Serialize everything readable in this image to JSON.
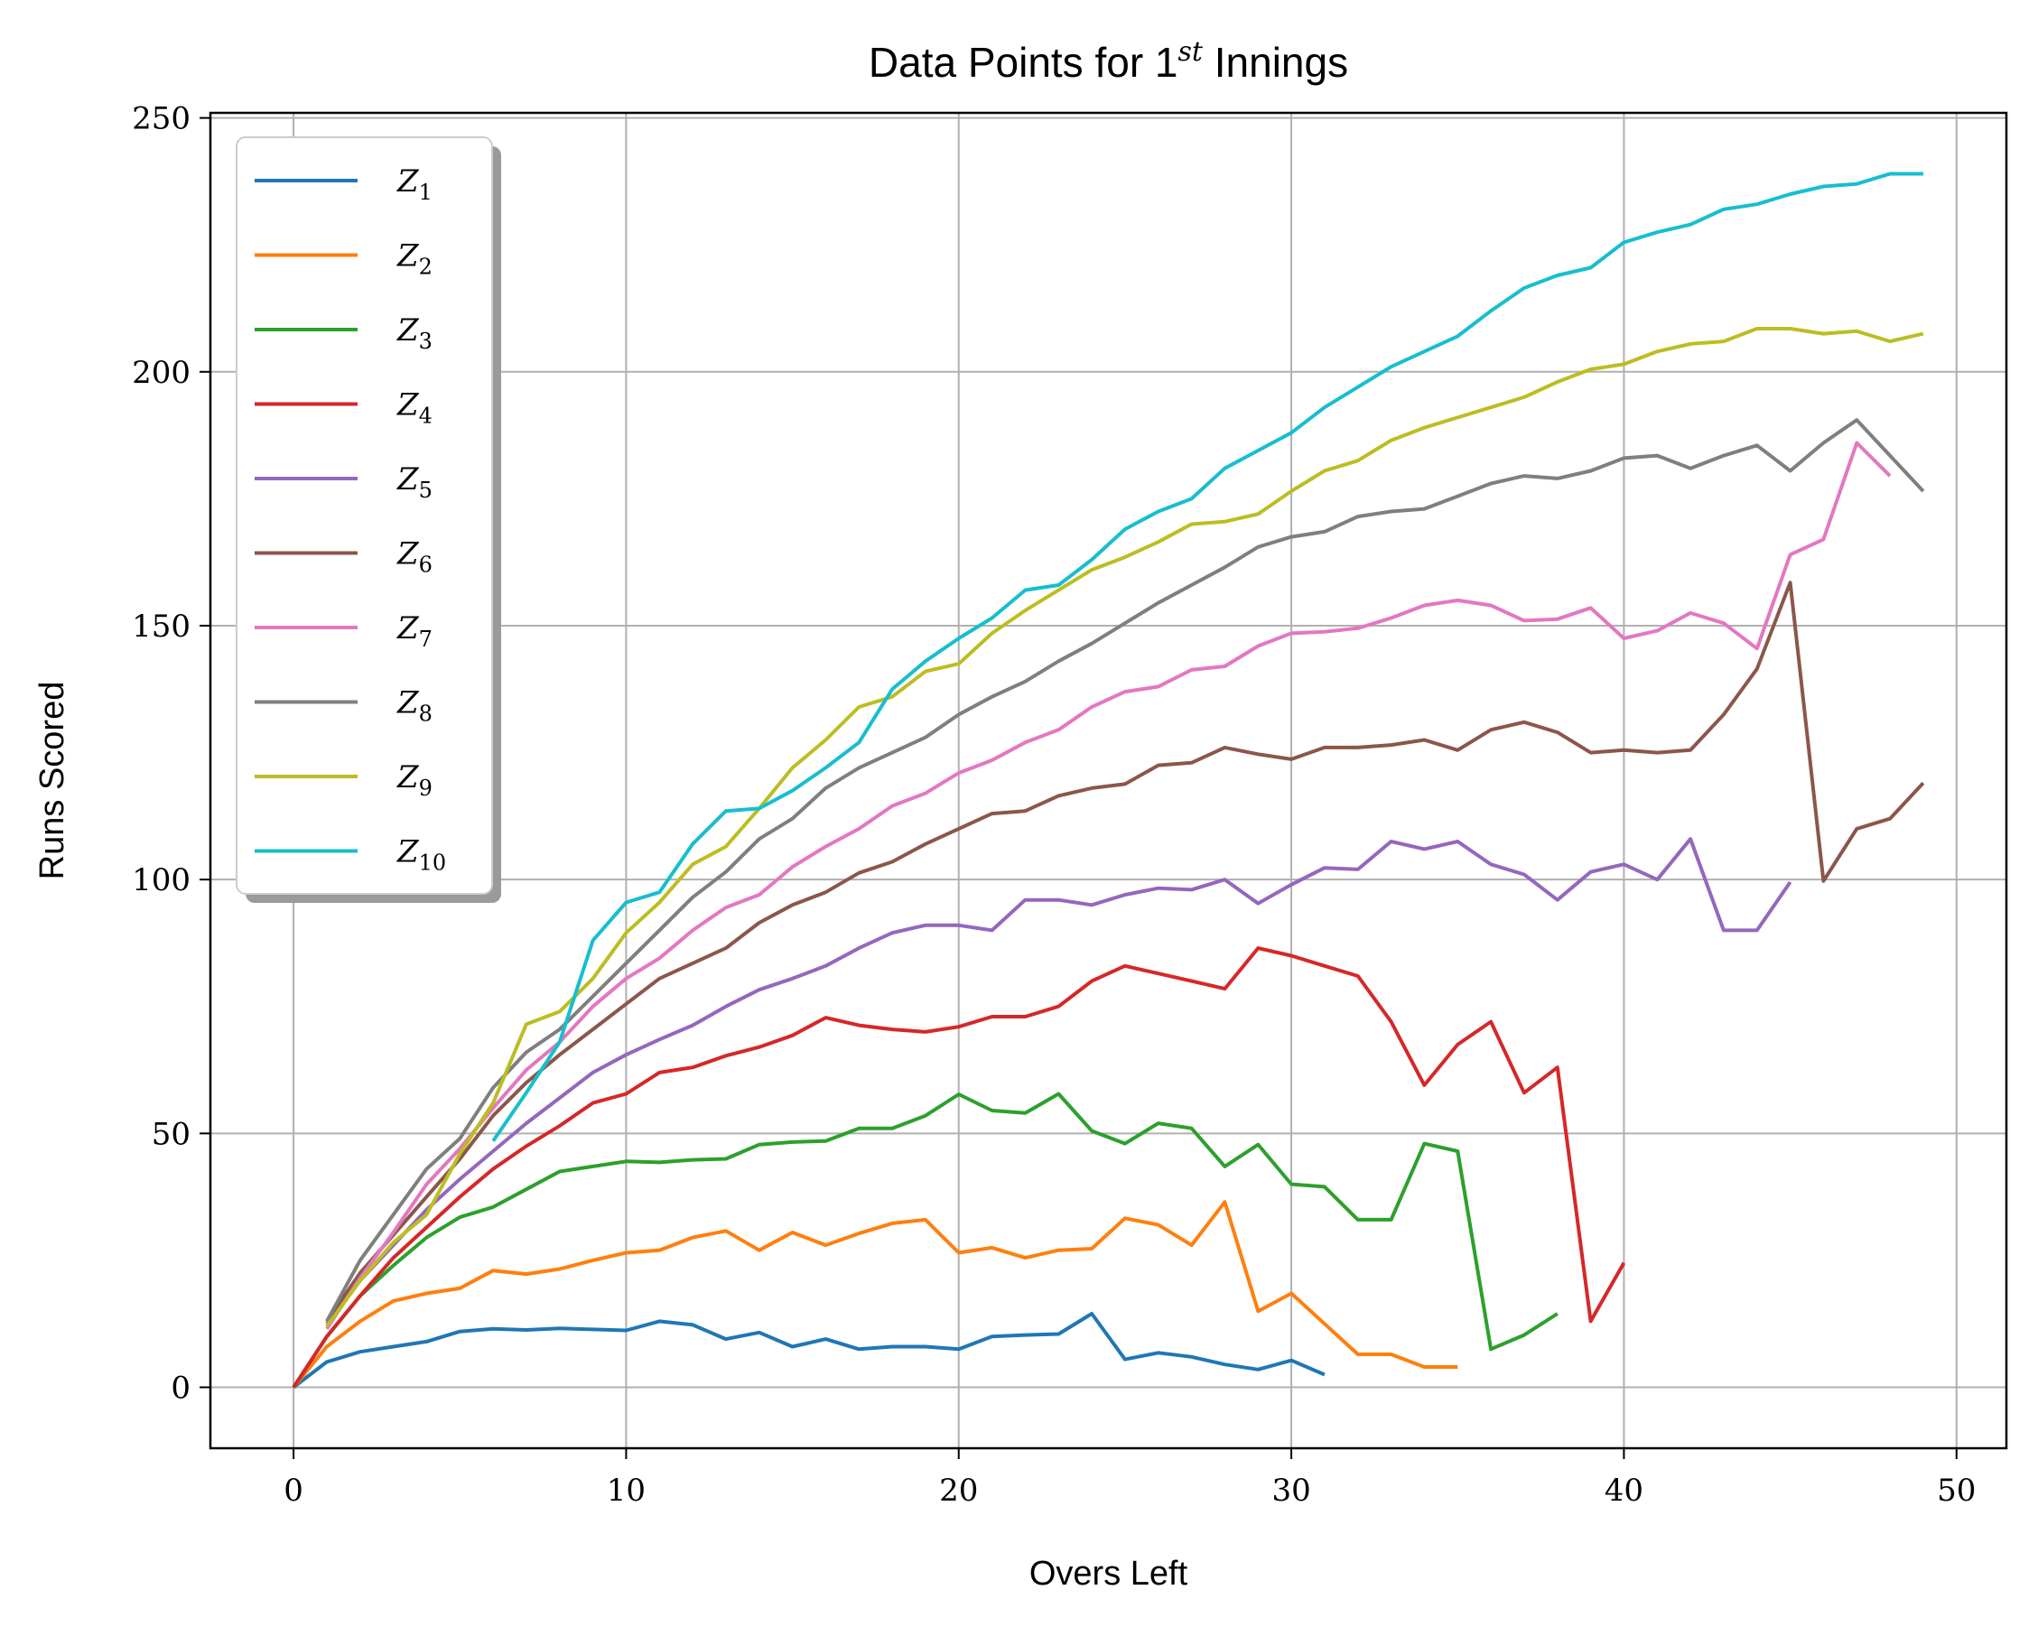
{
  "chart_data": {
    "type": "line",
    "title": "Data Points for 1st Innings",
    "title_parts": {
      "prefix": "Data Points for 1",
      "superscript": "st",
      "suffix": " Innings"
    },
    "xlabel": "Overs Left",
    "ylabel": "Runs Scored",
    "xlim": [
      -2.5,
      51.5
    ],
    "ylim": [
      -12,
      251
    ],
    "xticks": [
      0,
      10,
      20,
      30,
      40,
      50
    ],
    "yticks": [
      0,
      50,
      100,
      150,
      200,
      250
    ],
    "grid": true,
    "legend_position": "top-left",
    "series": [
      {
        "name": "Z1",
        "label_main": "Z",
        "label_sub": "1",
        "color": "#1f77b4",
        "start": 0,
        "values": [
          0,
          5,
          7,
          8,
          9,
          11,
          11.5,
          11.3,
          11.6,
          11.4,
          11.2,
          13,
          12.3,
          9.5,
          10.8,
          8,
          9.5,
          7.5,
          8,
          8,
          7.5,
          10,
          10.3,
          10.5,
          14.5,
          5.5,
          6.8,
          6,
          4.5,
          3.5,
          5.3,
          2.5
        ]
      },
      {
        "name": "Z2",
        "label_main": "Z",
        "label_sub": "2",
        "color": "#ff7f0e",
        "start": 0,
        "values": [
          0,
          8,
          13,
          17,
          18.5,
          19.5,
          23,
          22.3,
          23.3,
          25,
          26.5,
          27,
          29.5,
          30.8,
          27,
          30.5,
          28,
          30.3,
          32.3,
          33,
          26.5,
          27.5,
          25.5,
          27,
          27.3,
          33.3,
          32,
          28,
          36.5,
          15,
          18.5,
          12.5,
          6.5,
          6.5,
          4,
          4
        ]
      },
      {
        "name": "Z3",
        "label_main": "Z",
        "label_sub": "3",
        "color": "#2ca02c",
        "start": 0,
        "values": [
          0,
          10,
          18,
          24,
          29.5,
          33.5,
          35.5,
          39,
          42.5,
          43.5,
          44.5,
          44.3,
          44.8,
          45,
          47.8,
          48.3,
          48.5,
          51,
          51,
          53.5,
          57.7,
          54.5,
          54,
          57.8,
          50.5,
          48,
          52,
          51,
          43.5,
          47.8,
          40,
          39.5,
          33,
          33,
          48,
          46.5,
          7.5,
          10.3,
          14.5
        ]
      },
      {
        "name": "Z4",
        "label_main": "Z",
        "label_sub": "4",
        "color": "#d62728",
        "start": 0,
        "values": [
          0,
          10,
          18,
          25.5,
          31.5,
          37.5,
          43,
          47.5,
          51.5,
          56,
          57.8,
          62,
          63,
          65.3,
          67,
          69.3,
          72.8,
          71.3,
          70.5,
          70,
          71,
          73,
          73,
          75,
          80,
          83,
          81.5,
          80,
          78.5,
          86.5,
          85,
          83,
          81,
          72,
          59.5,
          67.5,
          72,
          58,
          63,
          13,
          24.5
        ]
      },
      {
        "name": "Z5",
        "label_main": "Z",
        "label_sub": "5",
        "color": "#9467bd",
        "start": 1,
        "values": [
          12.5,
          21,
          28,
          35,
          41,
          46.5,
          52,
          57,
          62,
          65.5,
          68.5,
          71.3,
          75,
          78.3,
          80.5,
          83,
          86.5,
          89.5,
          91,
          91,
          90,
          96,
          96,
          95,
          97,
          98.3,
          98,
          100,
          95.3,
          99,
          102.3,
          102,
          107.5,
          106,
          107.5,
          103,
          101,
          96,
          101.5,
          103,
          100,
          108,
          90,
          90,
          99.5
        ]
      },
      {
        "name": "Z6",
        "label_main": "Z",
        "label_sub": "6",
        "color": "#8c564b",
        "start": 1,
        "values": [
          13,
          22.5,
          30,
          37.5,
          45,
          53.5,
          60,
          65.5,
          70.5,
          75.5,
          80.5,
          83.5,
          86.5,
          91.5,
          95,
          97.5,
          101.3,
          103.5,
          107,
          110,
          113,
          113.5,
          116.5,
          118,
          118.8,
          122.5,
          123,
          126,
          124.7,
          123.7,
          126,
          126,
          126.5,
          127.5,
          125.5,
          129.5,
          131,
          129,
          125,
          125.5,
          125,
          125.5,
          132.5,
          141.5,
          158.5,
          99.7,
          110,
          112,
          119
        ]
      },
      {
        "name": "Z7",
        "label_main": "Z",
        "label_sub": "7",
        "color": "#e377c2",
        "start": 1,
        "values": [
          11.5,
          21.5,
          30.5,
          40,
          47,
          55,
          62.5,
          68,
          75,
          80.5,
          84.5,
          90,
          94.5,
          97,
          102.5,
          106.5,
          110,
          114.5,
          117,
          121,
          123.5,
          127,
          129.5,
          134,
          137,
          138,
          141.3,
          142,
          146,
          148.5,
          148.8,
          149.5,
          151.5,
          154,
          155,
          154,
          151,
          151.3,
          153.5,
          147.5,
          149,
          152.5,
          150.5,
          145.5,
          164,
          167,
          186,
          179.5
        ]
      },
      {
        "name": "Z8",
        "label_main": "Z",
        "label_sub": "8",
        "color": "#7f7f7f",
        "start": 1,
        "values": [
          13,
          25,
          34,
          43,
          49,
          59,
          66,
          70.5,
          77,
          83.5,
          90,
          96.5,
          101.5,
          108,
          112,
          118,
          122,
          125,
          128,
          132.5,
          136,
          139,
          143,
          146.5,
          150.5,
          154.5,
          158,
          161.5,
          165.5,
          167.5,
          168.5,
          171.5,
          172.5,
          173,
          175.5,
          178,
          179.5,
          179,
          180.5,
          183,
          183.5,
          181,
          183.5,
          185.5,
          180.5,
          186,
          190.5,
          183.5,
          176.5
        ]
      },
      {
        "name": "Z9",
        "label_main": "Z",
        "label_sub": "9",
        "color": "#bcbd22",
        "start": 1,
        "values": [
          12,
          21,
          28.5,
          34,
          46,
          56,
          71.5,
          74,
          80.5,
          89.5,
          95.5,
          103,
          106.5,
          114,
          122,
          127.5,
          134,
          136,
          141,
          142.5,
          148.5,
          153,
          157,
          161,
          163.5,
          166.5,
          170,
          170.5,
          172,
          176.5,
          180.5,
          182.5,
          186.5,
          189,
          191,
          193,
          195,
          198,
          200.5,
          201.5,
          204,
          205.5,
          206,
          208.5,
          208.5,
          207.5,
          208,
          206,
          207.5
        ]
      },
      {
        "name": "Z10",
        "label_main": "Z",
        "label_sub": "10",
        "color": "#17becf",
        "start": 6,
        "values": [
          48.5,
          58,
          68,
          88,
          95.5,
          97.5,
          107,
          113.5,
          114,
          117.5,
          122,
          127,
          137.5,
          143,
          147.5,
          151.5,
          157,
          158,
          163,
          169,
          172.5,
          175,
          181,
          184.5,
          188,
          193,
          197,
          201,
          204,
          207,
          212,
          216.5,
          219,
          220.5,
          225.5,
          227.5,
          229,
          232,
          233,
          235,
          236.5,
          237,
          239,
          239
        ]
      }
    ]
  }
}
